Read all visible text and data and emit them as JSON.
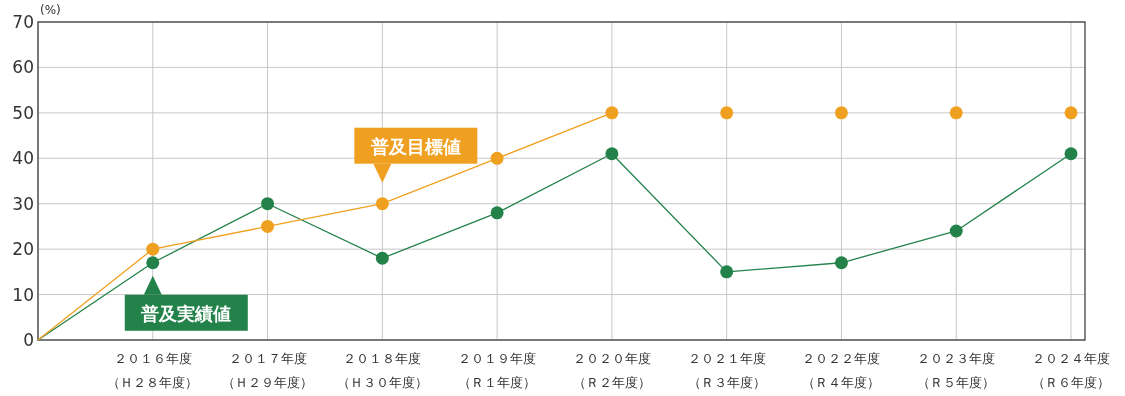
{
  "chart_data": {
    "type": "line",
    "ylabel": "(%)",
    "categories": [
      null,
      "２０１６年度（Ｈ２８年度）",
      "２０１７年度（Ｈ２９年度）",
      "２０１８年度（Ｈ３０年度）",
      "２０１９年度（Ｒ１年度）",
      "２０２０年度（Ｒ２年度）",
      "２０２１年度（Ｒ３年度）",
      "２０２２年度（Ｒ４年度）",
      "２０２３年度（Ｒ５年度）",
      "２０２４年度（Ｒ６年度）"
    ],
    "series": [
      {
        "name": "普及実績値",
        "color": "#23824a",
        "values": [
          0,
          17,
          30,
          18,
          28,
          41,
          15,
          17,
          24,
          41
        ]
      },
      {
        "name": "普及目標値",
        "color": "#f0a020",
        "values": [
          0,
          20,
          25,
          30,
          40,
          50,
          null,
          null,
          null,
          null
        ]
      },
      {
        "type": "scatter",
        "color": "#f0a020",
        "values": [
          null,
          null,
          null,
          null,
          null,
          null,
          50,
          50,
          50,
          50
        ]
      }
    ],
    "ylim": [
      0,
      70
    ],
    "yticks": [
      0,
      10,
      20,
      30,
      40,
      50,
      60,
      70
    ],
    "grid": true,
    "marker": "circle"
  }
}
